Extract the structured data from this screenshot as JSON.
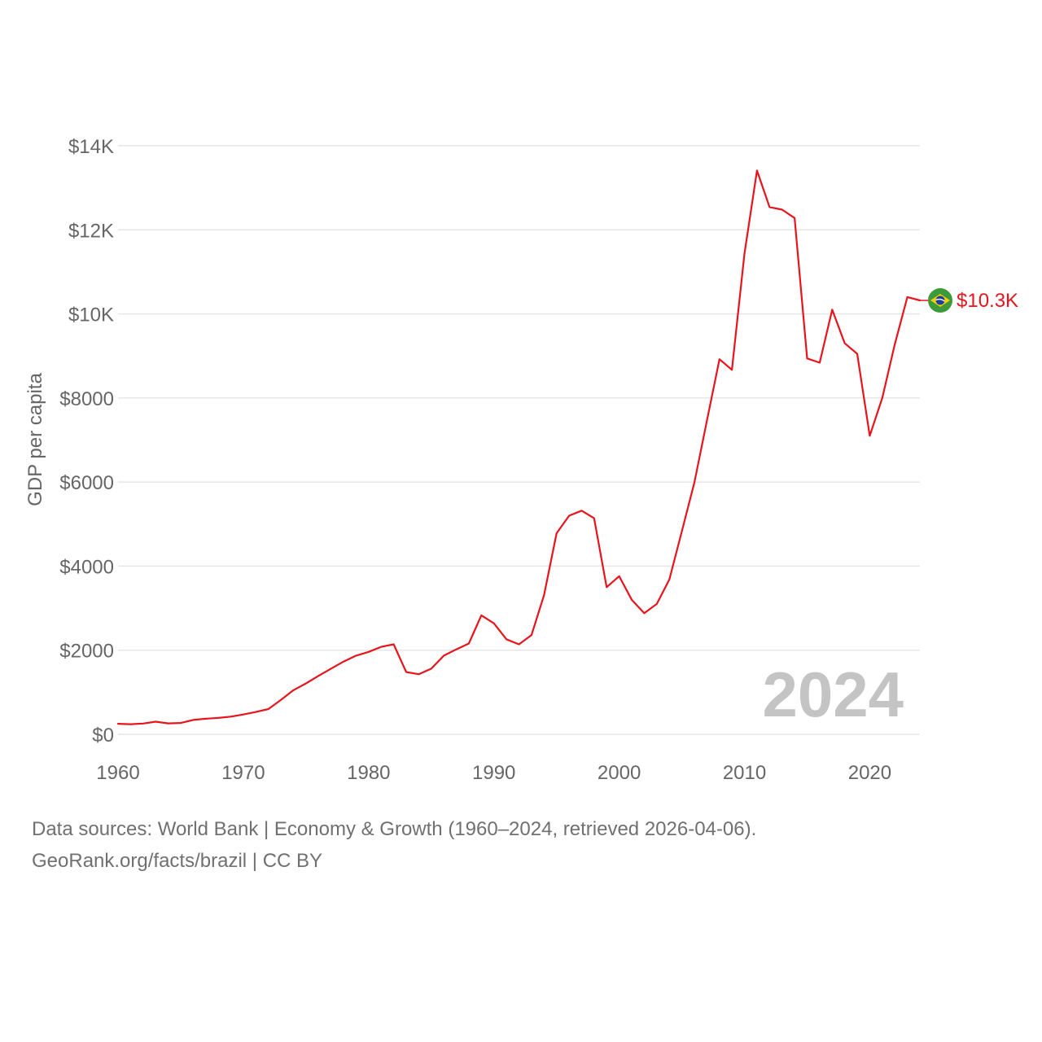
{
  "chart_data": {
    "type": "line",
    "title": "",
    "xlabel": "",
    "ylabel": "GDP per capita",
    "xlim": [
      1960,
      2024
    ],
    "ylim": [
      0,
      14000
    ],
    "grid": true,
    "watermark_year": "2024",
    "x_ticks": [
      {
        "value": 1960,
        "label": "1960"
      },
      {
        "value": 1970,
        "label": "1970"
      },
      {
        "value": 1980,
        "label": "1980"
      },
      {
        "value": 1990,
        "label": "1990"
      },
      {
        "value": 2000,
        "label": "2000"
      },
      {
        "value": 2010,
        "label": "2010"
      },
      {
        "value": 2020,
        "label": "2020"
      }
    ],
    "y_ticks": [
      {
        "value": 0,
        "label": "$0"
      },
      {
        "value": 2000,
        "label": "$2000"
      },
      {
        "value": 4000,
        "label": "$4000"
      },
      {
        "value": 6000,
        "label": "$6000"
      },
      {
        "value": 8000,
        "label": "$8000"
      },
      {
        "value": 10000,
        "label": "$10K"
      },
      {
        "value": 12000,
        "label": "$12K"
      },
      {
        "value": 14000,
        "label": "$14K"
      }
    ],
    "series": [
      {
        "name": "Brazil",
        "color": "#e8141b",
        "end_label": "$10.3K",
        "x": [
          1960,
          1961,
          1962,
          1963,
          1964,
          1965,
          1966,
          1967,
          1968,
          1969,
          1970,
          1971,
          1972,
          1973,
          1974,
          1975,
          1976,
          1977,
          1978,
          1979,
          1980,
          1981,
          1982,
          1983,
          1984,
          1985,
          1986,
          1987,
          1988,
          1989,
          1990,
          1991,
          1992,
          1993,
          1994,
          1995,
          1996,
          1997,
          1998,
          1999,
          2000,
          2001,
          2002,
          2003,
          2004,
          2005,
          2006,
          2007,
          2008,
          2009,
          2010,
          2011,
          2012,
          2013,
          2014,
          2015,
          2016,
          2017,
          2018,
          2019,
          2020,
          2021,
          2022,
          2023,
          2024
        ],
        "values": [
          250,
          240,
          255,
          300,
          260,
          270,
          340,
          370,
          390,
          420,
          470,
          530,
          600,
          820,
          1050,
          1210,
          1390,
          1560,
          1730,
          1870,
          1960,
          2080,
          2140,
          1480,
          1430,
          1560,
          1870,
          2020,
          2160,
          2830,
          2640,
          2260,
          2140,
          2360,
          3310,
          4780,
          5200,
          5320,
          5140,
          3500,
          3760,
          3200,
          2880,
          3100,
          3680,
          4830,
          5990,
          7460,
          8920,
          8670,
          11430,
          13410,
          12540,
          12480,
          12280,
          8940,
          8840,
          10100,
          9300,
          9050,
          7100,
          8000,
          9280,
          10400,
          10320
        ]
      }
    ]
  },
  "footer": {
    "line1": "Data sources: World Bank | Economy & Growth (1960–2024, retrieved 2026-04-06).",
    "line2": "GeoRank.org/facts/brazil | CC BY"
  }
}
